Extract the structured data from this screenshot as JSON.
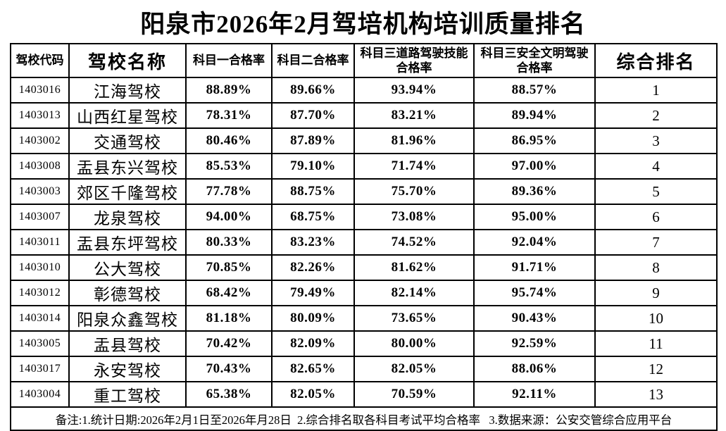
{
  "title": "阳泉市2026年2月驾培机构培训质量排名",
  "table": {
    "headers": [
      {
        "label": "驾校代码"
      },
      {
        "label": "驾校名称"
      },
      {
        "label": "科目一合格率"
      },
      {
        "label": "科目二合格率"
      },
      {
        "label": "科目三道路驾驶技能\n合格率"
      },
      {
        "label": "科目三安全文明驾驶\n合格率"
      },
      {
        "label": "综合排名"
      }
    ],
    "rows": [
      {
        "code": "1403016",
        "name": "江海驾校",
        "subject1": "88.89%",
        "subject2": "89.66%",
        "subject3_road": "93.94%",
        "subject3_safe": "88.57%",
        "rank": "1"
      },
      {
        "code": "1403013",
        "name": "山西红星驾校",
        "subject1": "78.31%",
        "subject2": "87.70%",
        "subject3_road": "83.21%",
        "subject3_safe": "89.94%",
        "rank": "2"
      },
      {
        "code": "1403002",
        "name": "交通驾校",
        "subject1": "80.46%",
        "subject2": "87.89%",
        "subject3_road": "81.96%",
        "subject3_safe": "86.95%",
        "rank": "3"
      },
      {
        "code": "1403008",
        "name": "盂县东兴驾校",
        "subject1": "85.53%",
        "subject2": "79.10%",
        "subject3_road": "71.74%",
        "subject3_safe": "97.00%",
        "rank": "4"
      },
      {
        "code": "1403003",
        "name": "郊区千隆驾校",
        "subject1": "77.78%",
        "subject2": "88.75%",
        "subject3_road": "75.70%",
        "subject3_safe": "89.36%",
        "rank": "5"
      },
      {
        "code": "1403007",
        "name": "龙泉驾校",
        "subject1": "94.00%",
        "subject2": "68.75%",
        "subject3_road": "73.08%",
        "subject3_safe": "95.00%",
        "rank": "6"
      },
      {
        "code": "1403011",
        "name": "盂县东坪驾校",
        "subject1": "80.33%",
        "subject2": "83.23%",
        "subject3_road": "74.52%",
        "subject3_safe": "92.04%",
        "rank": "7"
      },
      {
        "code": "1403010",
        "name": "公大驾校",
        "subject1": "70.85%",
        "subject2": "82.26%",
        "subject3_road": "81.62%",
        "subject3_safe": "91.71%",
        "rank": "8"
      },
      {
        "code": "1403012",
        "name": "彰德驾校",
        "subject1": "68.42%",
        "subject2": "79.49%",
        "subject3_road": "82.14%",
        "subject3_safe": "95.74%",
        "rank": "9"
      },
      {
        "code": "1403014",
        "name": "阳泉众鑫驾校",
        "subject1": "81.18%",
        "subject2": "80.09%",
        "subject3_road": "73.65%",
        "subject3_safe": "90.43%",
        "rank": "10"
      },
      {
        "code": "1403005",
        "name": "盂县驾校",
        "subject1": "70.42%",
        "subject2": "82.09%",
        "subject3_road": "80.00%",
        "subject3_safe": "92.59%",
        "rank": "11"
      },
      {
        "code": "1403017",
        "name": "永安驾校",
        "subject1": "70.43%",
        "subject2": "82.65%",
        "subject3_road": "82.05%",
        "subject3_safe": "88.06%",
        "rank": "12"
      },
      {
        "code": "1403004",
        "name": "重工驾校",
        "subject1": "65.38%",
        "subject2": "82.05%",
        "subject3_road": "70.59%",
        "subject3_safe": "92.11%",
        "rank": "13"
      }
    ],
    "remark": "备注:1.统计日期:2026年2月1日至2026年月28日  2.综合排名取各科目考试平均合格率   3.数据来源：公安交管综合应用平台"
  }
}
